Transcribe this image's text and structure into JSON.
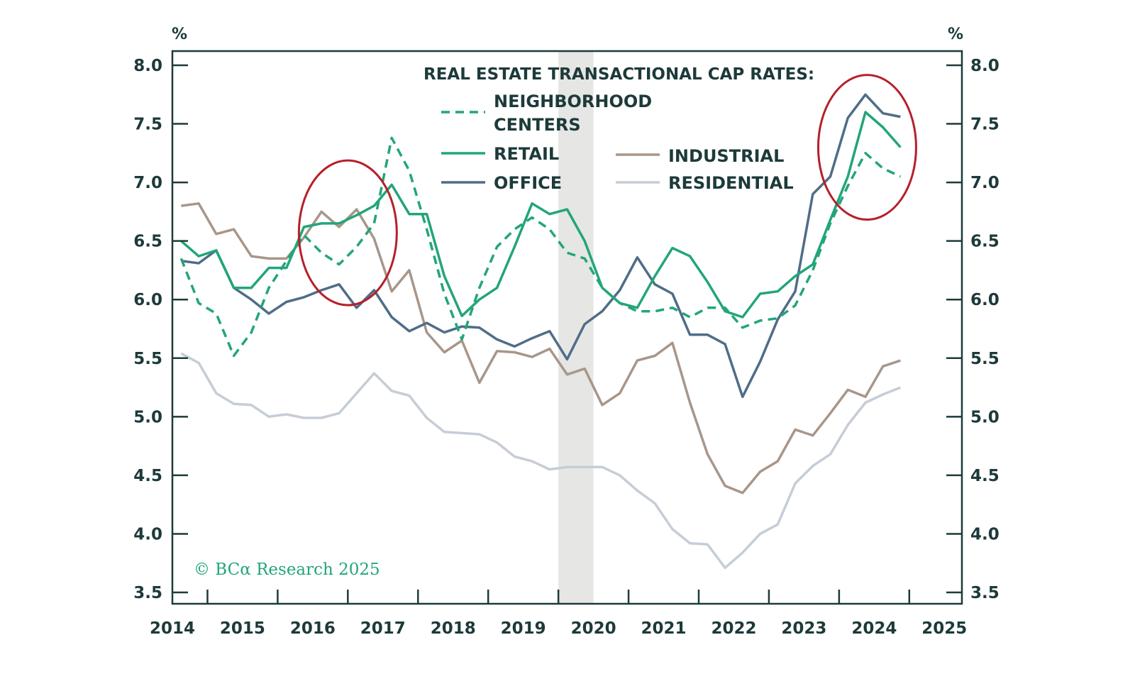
{
  "chart_data": {
    "type": "line",
    "title": "REAL ESTATE TRANSACTIONAL CAP RATES:",
    "y_unit_left": "%",
    "y_unit_right": "%",
    "ylim": [
      3.5,
      8.0
    ],
    "yticks": [
      "8.0",
      "7.5",
      "7.0",
      "6.5",
      "6.0",
      "5.5",
      "5.0",
      "4.5",
      "4.0",
      "3.5"
    ],
    "xlim": [
      2014.5,
      2025.75
    ],
    "xtick_labels": [
      "2014",
      "2015",
      "2016",
      "2017",
      "2018",
      "2019",
      "2020",
      "2021",
      "2022",
      "2023",
      "2024",
      "2025"
    ],
    "grid": false,
    "recession_shading": [
      {
        "start": 2020.0,
        "end": 2020.5
      }
    ],
    "highlight_circles": [
      "2017",
      "2024"
    ],
    "copyright": "© BCα Research 2025",
    "x": [
      "2014Q3",
      "2014Q4",
      "2015Q1",
      "2015Q2",
      "2015Q3",
      "2015Q4",
      "2016Q1",
      "2016Q2",
      "2016Q3",
      "2016Q4",
      "2017Q1",
      "2017Q2",
      "2017Q3",
      "2017Q4",
      "2018Q1",
      "2018Q2",
      "2018Q3",
      "2018Q4",
      "2019Q1",
      "2019Q2",
      "2019Q3",
      "2019Q4",
      "2020Q1",
      "2020Q2",
      "2020Q3",
      "2020Q4",
      "2021Q1",
      "2021Q2",
      "2021Q3",
      "2021Q4",
      "2022Q1",
      "2022Q2",
      "2022Q3",
      "2022Q4",
      "2023Q1",
      "2023Q2",
      "2023Q3",
      "2023Q4",
      "2024Q1",
      "2024Q2",
      "2024Q3",
      "2024Q4"
    ],
    "series": [
      {
        "name": "NEIGHBORHOOD CENTERS",
        "color": "#22a57a",
        "dashed": true,
        "values": [
          6.35,
          5.97,
          5.88,
          5.52,
          5.72,
          6.1,
          6.33,
          6.55,
          6.4,
          6.3,
          6.45,
          6.65,
          7.38,
          7.1,
          6.6,
          6.05,
          5.66,
          6.1,
          6.45,
          6.6,
          6.7,
          6.6,
          6.4,
          6.35,
          6.1,
          5.97,
          5.9,
          5.9,
          5.93,
          5.85,
          5.93,
          5.93,
          5.76,
          5.82,
          5.84,
          5.95,
          6.25,
          6.65,
          6.97,
          7.25,
          7.12,
          7.05
        ]
      },
      {
        "name": "RETAIL",
        "color": "#22a57a",
        "dashed": false,
        "values": [
          6.5,
          6.37,
          6.42,
          6.1,
          6.1,
          6.27,
          6.27,
          6.62,
          6.65,
          6.65,
          6.72,
          6.8,
          6.98,
          6.73,
          6.73,
          6.2,
          5.86,
          6.0,
          6.1,
          6.45,
          6.82,
          6.73,
          6.77,
          6.5,
          6.1,
          5.97,
          5.93,
          6.2,
          6.44,
          6.37,
          6.15,
          5.9,
          5.85,
          6.05,
          6.07,
          6.2,
          6.3,
          6.68,
          7.05,
          7.6,
          7.47,
          7.3
        ]
      },
      {
        "name": "OFFICE",
        "color": "#4f6d88",
        "dashed": false,
        "values": [
          6.33,
          6.31,
          6.42,
          6.1,
          6.0,
          5.88,
          5.98,
          6.02,
          6.08,
          6.13,
          5.93,
          6.08,
          5.85,
          5.73,
          5.8,
          5.72,
          5.77,
          5.76,
          5.66,
          5.6,
          5.67,
          5.73,
          5.49,
          5.79,
          5.9,
          6.08,
          6.36,
          6.13,
          6.05,
          5.7,
          5.7,
          5.62,
          5.17,
          5.47,
          5.83,
          6.07,
          6.9,
          7.05,
          7.55,
          7.75,
          7.59,
          7.56
        ]
      },
      {
        "name": "INDUSTRIAL",
        "color": "#a8968a",
        "dashed": false,
        "values": [
          6.8,
          6.82,
          6.56,
          6.6,
          6.37,
          6.35,
          6.35,
          6.53,
          6.75,
          6.62,
          6.77,
          6.52,
          6.07,
          6.25,
          5.72,
          5.55,
          5.65,
          5.29,
          5.56,
          5.55,
          5.51,
          5.58,
          5.36,
          5.41,
          5.1,
          5.2,
          5.48,
          5.52,
          5.63,
          5.12,
          4.68,
          4.41,
          4.35,
          4.53,
          4.62,
          4.89,
          4.84,
          5.03,
          5.23,
          5.17,
          5.43,
          5.48
        ]
      },
      {
        "name": "RESIDENTIAL",
        "color": "#c6cdd6",
        "dashed": false,
        "values": [
          5.54,
          5.46,
          5.2,
          5.11,
          5.1,
          5.0,
          5.02,
          4.99,
          4.99,
          5.03,
          5.2,
          5.37,
          5.22,
          5.18,
          4.99,
          4.87,
          4.86,
          4.85,
          4.78,
          4.66,
          4.62,
          4.55,
          4.57,
          4.57,
          4.57,
          4.5,
          4.37,
          4.26,
          4.04,
          3.92,
          3.91,
          3.71,
          3.84,
          4.0,
          4.08,
          4.43,
          4.58,
          4.68,
          4.93,
          5.12,
          5.19,
          5.25
        ]
      }
    ],
    "legend": {
      "title": "REAL ESTATE TRANSACTIONAL CAP RATES:",
      "entries": [
        {
          "line1": "NEIGHBORHOOD",
          "line2": "CENTERS"
        },
        {
          "line1": "RETAIL"
        },
        {
          "line1": "OFFICE"
        },
        {
          "line1": "INDUSTRIAL"
        },
        {
          "line1": "RESIDENTIAL"
        }
      ],
      "placement": "top"
    },
    "colors": {
      "axis": "#1d3a3a",
      "shading": "#e6e6e4",
      "circle": "#b5202a"
    }
  }
}
